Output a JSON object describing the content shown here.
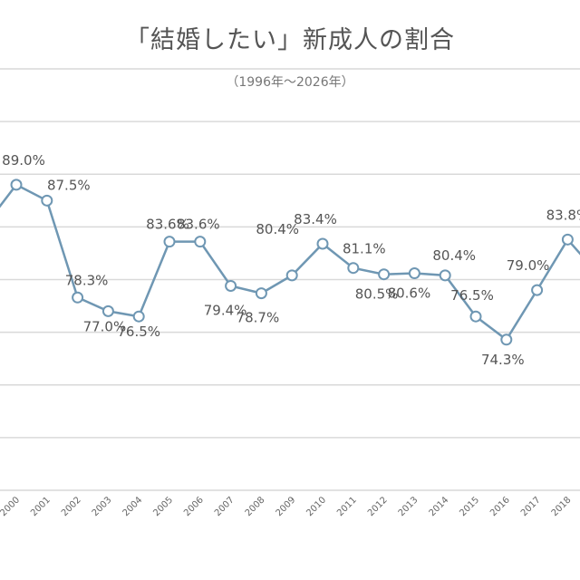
{
  "chart_data": {
    "type": "line",
    "title": "「結婚したい」新成人の割合",
    "subtitle": "（1996年～2026年）",
    "xlabel": "",
    "ylabel": "",
    "ylim": [
      60,
      100
    ],
    "ygrid_step": 5,
    "grid": true,
    "legend": "none",
    "line_color": "#6f97b3",
    "marker": "hollow-circle",
    "x": [
      "2000",
      "2001",
      "2002",
      "2003",
      "2004",
      "2005",
      "2006",
      "2007",
      "2008",
      "2009",
      "2010",
      "2011",
      "2012",
      "2013",
      "2014",
      "2015",
      "2016",
      "2017",
      "2018"
    ],
    "values": [
      89.0,
      87.5,
      78.3,
      77.0,
      76.5,
      83.6,
      83.6,
      79.4,
      78.7,
      80.4,
      83.4,
      81.1,
      80.5,
      80.6,
      80.4,
      76.5,
      74.3,
      79.0,
      83.8
    ],
    "labels": [
      "89.0%",
      "87.5%",
      "78.3%",
      "77.0%",
      "76.5%",
      "83.6%",
      "83.6%",
      "79.4%",
      "78.7%",
      "80.4%",
      "83.4%",
      "81.1%",
      "80.5%",
      "80.6%",
      "80.4%",
      "76.5%",
      "74.3%",
      "79.0%",
      "83.8%"
    ],
    "offscreen_left_value": 85.2,
    "offscreen_right_value": 80.5
  }
}
